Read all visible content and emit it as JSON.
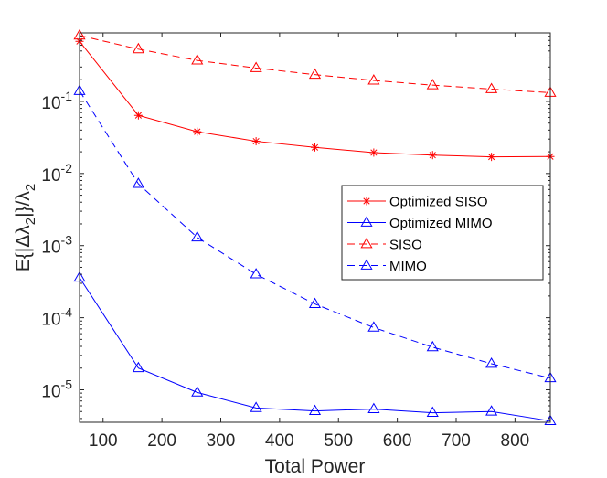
{
  "chart_data": {
    "type": "line",
    "xlabel": "Total Power",
    "ylabel": "E{|Δλ2|}/λ2",
    "yscale": "log",
    "xlim": [
      60,
      860
    ],
    "ylim_exp": [
      -5.45,
      -0.05
    ],
    "x_ticks": [
      100,
      200,
      300,
      400,
      500,
      600,
      700,
      800
    ],
    "x_tick_labels": [
      "100",
      "200",
      "300",
      "400",
      "500",
      "600",
      "700",
      "800"
    ],
    "y_ticks_exp": [
      -5,
      -4,
      -3,
      -2,
      -1
    ],
    "y_tick_labels": [
      {
        "base": "10",
        "exp": "-5"
      },
      {
        "base": "10",
        "exp": "-4"
      },
      {
        "base": "10",
        "exp": "-3"
      },
      {
        "base": "10",
        "exp": "-2"
      },
      {
        "base": "10",
        "exp": "-1"
      }
    ],
    "x": [
      60,
      160,
      260,
      360,
      460,
      560,
      660,
      760,
      860
    ],
    "series": [
      {
        "name": "Optimized SISO",
        "color": "#ff0000",
        "dash": "solid",
        "marker": "star",
        "values": [
          0.68,
          0.064,
          0.038,
          0.028,
          0.023,
          0.0195,
          0.018,
          0.017,
          0.0172
        ]
      },
      {
        "name": "Optimized MIMO",
        "color": "#0000ff",
        "dash": "solid",
        "marker": "triangle",
        "values": [
          0.00036,
          2e-05,
          9.2e-06,
          5.6e-06,
          5.1e-06,
          5.4e-06,
          4.8e-06,
          5e-06,
          3.7e-06
        ]
      },
      {
        "name": "SISO",
        "color": "#ff0000",
        "dash": "dashed",
        "marker": "triangle",
        "values": [
          0.82,
          0.53,
          0.37,
          0.29,
          0.235,
          0.195,
          0.168,
          0.148,
          0.132
        ]
      },
      {
        "name": "MIMO",
        "color": "#0000ff",
        "dash": "dashed",
        "marker": "triangle",
        "values": [
          0.14,
          0.0072,
          0.0013,
          0.0004,
          0.000155,
          7.3e-05,
          3.9e-05,
          2.3e-05,
          1.45e-05
        ]
      }
    ],
    "legend_position": "center-right",
    "grid": false
  }
}
